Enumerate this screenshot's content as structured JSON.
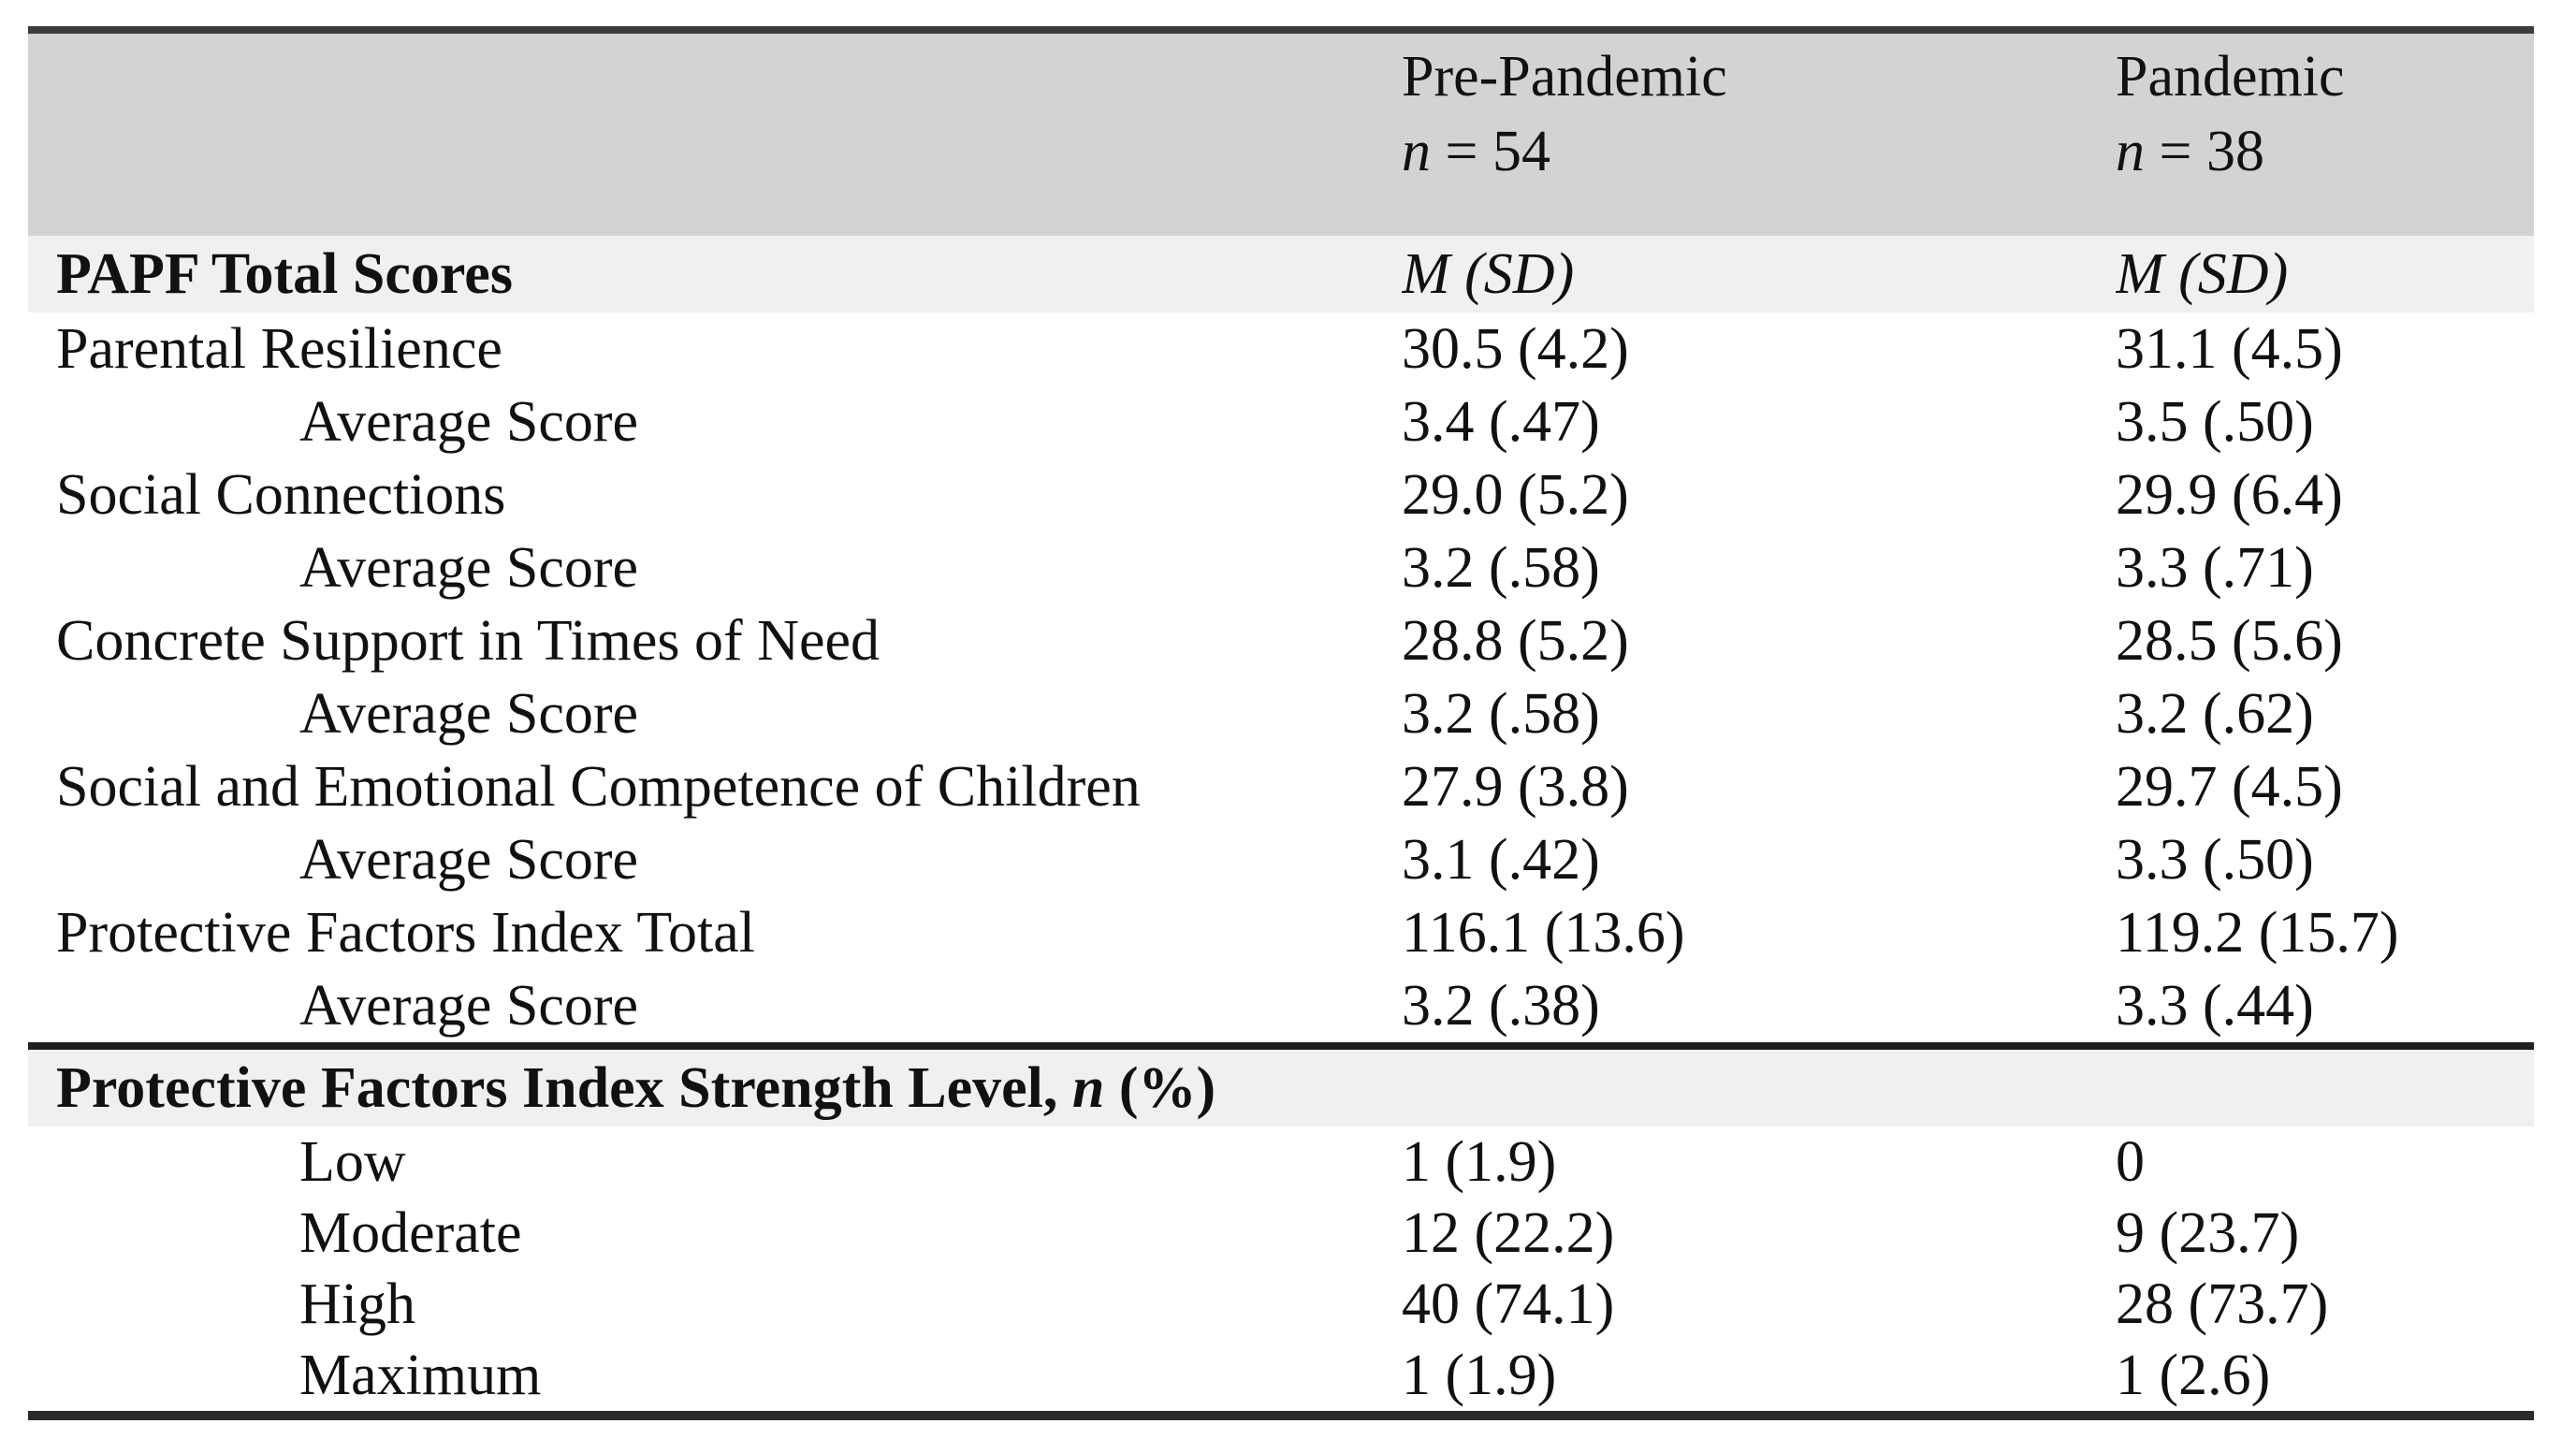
{
  "colors": {
    "header_band_bg": "#d3d3d3",
    "section_band_bg": "#f0f0f0",
    "rule_color": "#2b2b2b",
    "text_color": "#111111"
  },
  "table": {
    "columns": [
      {
        "title": "Pre-Pandemic",
        "n_italic": "n",
        "n_rest": " = 54"
      },
      {
        "title": "Pandemic",
        "n_italic": "n",
        "n_rest": " = 38"
      }
    ],
    "section1": {
      "header": "PAPF Total Scores",
      "stat_label_pre": "M (SD)",
      "stat_label_pan": "M (SD)",
      "rows": [
        {
          "label": "Parental Resilience",
          "pre": "30.5 (4.2)",
          "pan": "31.1 (4.5)"
        },
        {
          "label": "Average Score",
          "pre": "3.4 (.47)",
          "pan": "3.5 (.50)"
        },
        {
          "label": "Social Connections",
          "pre": "29.0 (5.2)",
          "pan": "29.9 (6.4)"
        },
        {
          "label": "Average Score",
          "pre": "3.2 (.58)",
          "pan": "3.3 (.71)"
        },
        {
          "label": "Concrete Support in Times of Need",
          "pre": "28.8 (5.2)",
          "pan": "28.5 (5.6)"
        },
        {
          "label": "Average Score",
          "pre": "3.2 (.58)",
          "pan": "3.2 (.62)"
        },
        {
          "label": "Social and Emotional Competence of Children",
          "pre": "27.9 (3.8)",
          "pan": "29.7 (4.5)"
        },
        {
          "label": "Average Score",
          "pre": "3.1 (.42)",
          "pan": "3.3 (.50)"
        },
        {
          "label": "Protective Factors Index Total",
          "pre": "116.1 (13.6)",
          "pan": "119.2 (15.7)"
        },
        {
          "label": "Average Score",
          "pre": "3.2 (.38)",
          "pan": "3.3 (.44)"
        }
      ]
    },
    "section2": {
      "header_prefix": "Protective Factors Index Strength Level, ",
      "header_n": "n",
      "header_suffix": " (%)",
      "rows": [
        {
          "label": "Low",
          "pre": "1 (1.9)",
          "pan": "0"
        },
        {
          "label": "Moderate",
          "pre": "12 (22.2)",
          "pan": "9 (23.7)"
        },
        {
          "label": "High",
          "pre": "40 (74.1)",
          "pan": "28 (73.7)"
        },
        {
          "label": "Maximum",
          "pre": "1 (1.9)",
          "pan": "1 (2.6)"
        }
      ]
    }
  }
}
